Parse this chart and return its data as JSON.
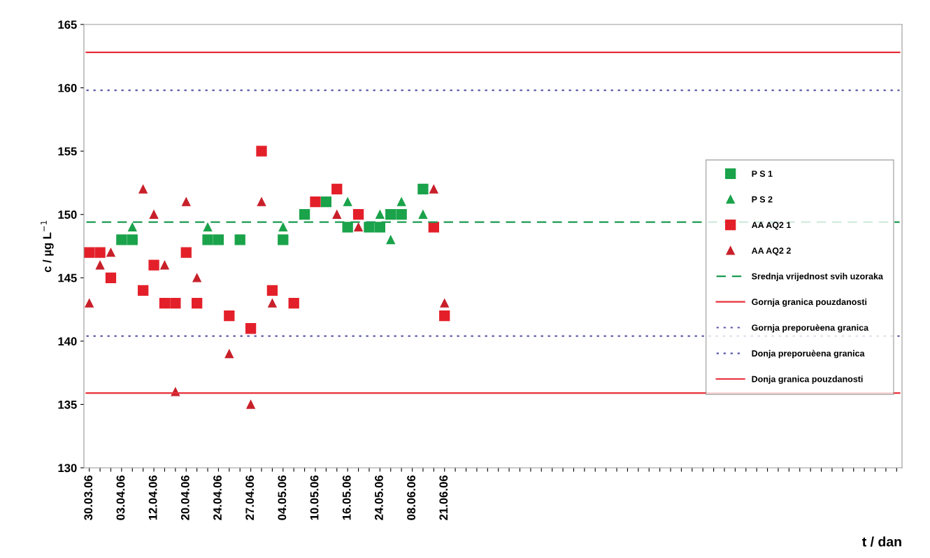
{
  "chart_data": {
    "type": "scatter",
    "ylabel": "c / µg L$^{−1}$",
    "xlabel": "t / dan",
    "categories": [
      "30.03.06",
      null,
      null,
      "03.04.06",
      null,
      null,
      "12.04.06",
      null,
      null,
      "20.04.06",
      null,
      null,
      "24.04.06",
      null,
      null,
      "27.04.06",
      null,
      null,
      "04.05.06",
      null,
      null,
      "10.05.06",
      null,
      null,
      "16.05.06",
      null,
      null,
      "24.05.06",
      null,
      null,
      "08.06.06",
      null,
      null,
      "21.06.06",
      null,
      null,
      null,
      null,
      null,
      null,
      null,
      null,
      null,
      null,
      null,
      null,
      null,
      null,
      null,
      null,
      null,
      null,
      null,
      null,
      null,
      null,
      null,
      null,
      null,
      null,
      null,
      null,
      null,
      null,
      null,
      null,
      null,
      null,
      null,
      null,
      null,
      null,
      null,
      null,
      null,
      null
    ],
    "series": [
      {
        "name": "P S 1",
        "color": "#1aa34a",
        "marker": "square",
        "values": [
          null,
          null,
          null,
          148,
          148,
          null,
          null,
          null,
          null,
          null,
          null,
          148,
          148,
          null,
          148,
          null,
          null,
          null,
          148,
          null,
          150,
          null,
          151,
          null,
          149,
          null,
          149,
          149,
          150,
          150,
          null,
          152,
          null,
          null,
          null,
          null,
          null,
          null,
          null,
          null,
          null,
          null,
          null,
          null,
          null,
          null,
          null,
          null,
          null,
          null,
          null,
          null,
          null,
          null,
          null,
          null,
          null,
          null,
          null,
          null,
          null,
          null,
          null,
          null,
          null,
          null,
          null,
          null,
          null,
          null,
          null,
          null,
          null,
          null,
          null,
          null
        ]
      },
      {
        "name": "P S 2",
        "color": "#1aa34a",
        "marker": "triangle",
        "values": [
          null,
          null,
          null,
          null,
          149,
          null,
          null,
          null,
          null,
          null,
          null,
          149,
          null,
          null,
          null,
          null,
          null,
          null,
          149,
          null,
          null,
          null,
          null,
          null,
          151,
          null,
          null,
          150,
          148,
          151,
          null,
          150,
          null,
          null,
          null,
          null,
          null,
          null,
          null,
          null,
          null,
          null,
          null,
          null,
          null,
          null,
          null,
          null,
          null,
          null,
          null,
          null,
          null,
          null,
          null,
          null,
          null,
          null,
          null,
          null,
          null,
          null,
          null,
          null,
          null,
          null,
          null,
          null,
          null,
          null,
          null,
          null,
          null,
          null,
          null,
          null
        ]
      },
      {
        "name": "AA AQ2 1",
        "color": "#e3202a",
        "marker": "square",
        "values": [
          147,
          147,
          145,
          null,
          null,
          144,
          146,
          143,
          143,
          147,
          143,
          null,
          null,
          142,
          null,
          141,
          155,
          144,
          null,
          143,
          null,
          151,
          null,
          152,
          null,
          150,
          null,
          null,
          null,
          null,
          null,
          null,
          149,
          142,
          null,
          null,
          null,
          null,
          null,
          null,
          null,
          null,
          null,
          null,
          null,
          null,
          null,
          null,
          null,
          null,
          null,
          null,
          null,
          null,
          null,
          null,
          null,
          null,
          null,
          null,
          null,
          null,
          null,
          null,
          null,
          null,
          null,
          null,
          null,
          null,
          null,
          null,
          null,
          null,
          null,
          null
        ]
      },
      {
        "name": "AA AQ2 2",
        "color": "#c8202a",
        "marker": "triangle",
        "values": [
          143,
          146,
          147,
          null,
          null,
          152,
          150,
          146,
          136,
          151,
          145,
          null,
          null,
          139,
          null,
          135,
          151,
          143,
          null,
          null,
          null,
          null,
          null,
          150,
          null,
          149,
          null,
          null,
          null,
          null,
          null,
          null,
          152,
          143,
          null,
          null,
          null,
          null,
          null,
          null,
          null,
          null,
          null,
          null,
          null,
          null,
          null,
          null,
          null,
          null,
          null,
          null,
          null,
          null,
          null,
          null,
          null,
          null,
          null,
          null,
          null,
          null,
          null,
          null,
          null,
          null,
          null,
          null,
          null,
          null,
          null,
          null,
          null,
          null,
          null,
          null
        ]
      }
    ],
    "ref_lines": [
      {
        "axis": "y",
        "value": 149.4,
        "label": "Srednja vrijednost svih uzoraka",
        "color": "#1a9a50",
        "line_style": "dashed"
      },
      {
        "axis": "y",
        "value": 162.8,
        "label": "Gornja granica pouzdanosti",
        "color": "#e8303a",
        "line_style": "solid"
      },
      {
        "axis": "y",
        "value": 159.8,
        "label": "Gornja preporuèena granica",
        "color": "#5a5aa8",
        "line_style": "dotted"
      },
      {
        "axis": "y",
        "value": 140.4,
        "label": "Donja preporuèena granica",
        "color": "#5a5aa8",
        "line_style": "dotted"
      },
      {
        "axis": "y",
        "value": 135.9,
        "label": "Donja granica pouzdanosti",
        "color": "#e8303a",
        "line_style": "solid"
      }
    ],
    "ylim": [
      130,
      165
    ],
    "yticks": [
      130,
      135,
      140,
      145,
      150,
      155,
      160,
      165
    ],
    "grid": false,
    "legend": "right"
  }
}
